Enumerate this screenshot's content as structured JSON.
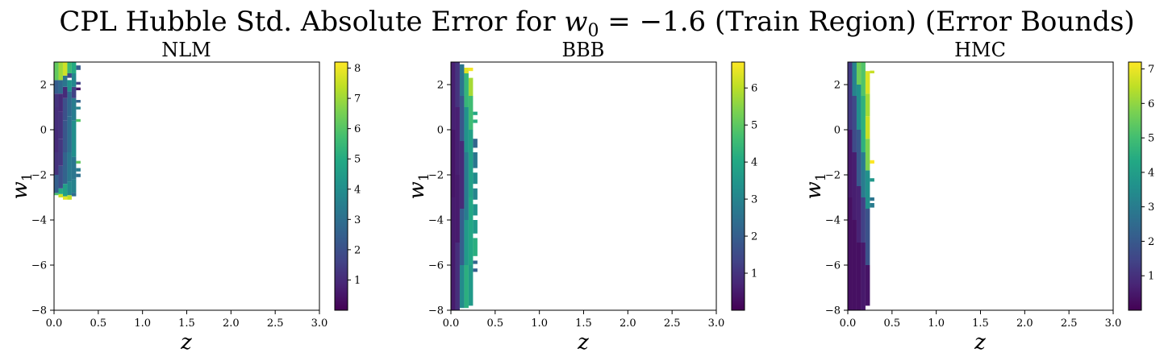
{
  "figure": {
    "title_prefix": "CPL Hubble Std. Absolute Error for ",
    "title_math_var": "w",
    "title_math_sub": "0",
    "title_math_rest": " = −1.6",
    "title_suffix": " (Train Region) (Error Bounds)"
  },
  "chart_data": [
    {
      "type": "heatmap",
      "title": "NLM",
      "xlabel": "z",
      "ylabel_var": "w",
      "ylabel_sub": "1",
      "xlim": [
        0.0,
        3.0
      ],
      "ylim": [
        -8,
        3
      ],
      "x_ticks": [
        "0.0",
        "0.5",
        "1.0",
        "1.5",
        "2.0",
        "2.5",
        "3.0"
      ],
      "y_ticks": [
        "−8",
        "−6",
        "−4",
        "−2",
        "0",
        "2"
      ],
      "y_tick_values": [
        -8,
        -6,
        -4,
        -2,
        0,
        2
      ],
      "colorbar_ticks": [
        "1",
        "2",
        "3",
        "4",
        "5",
        "6",
        "7",
        "8"
      ],
      "colorbar_tick_values": [
        1,
        2,
        3,
        4,
        5,
        6,
        7,
        8
      ],
      "vmin": 0.0,
      "vmax": 8.2,
      "columns": [
        {
          "x": [
            0.0,
            0.05
          ],
          "cells": [
            [
              -2.9,
              -2.8,
              5.8
            ],
            [
              -2.8,
              -2.0,
              2.5
            ],
            [
              -2.0,
              -1.0,
              1.2
            ],
            [
              -1.0,
              0.0,
              1.0
            ],
            [
              0.0,
              1.0,
              1.1
            ],
            [
              1.0,
              1.6,
              1.2
            ],
            [
              1.6,
              2.2,
              2.4
            ],
            [
              2.2,
              3.0,
              6.2
            ]
          ]
        },
        {
          "x": [
            0.05,
            0.1
          ],
          "cells": [
            [
              -3.0,
              -2.85,
              7.6
            ],
            [
              -2.85,
              -2.6,
              5.0
            ],
            [
              -2.6,
              -1.6,
              2.0
            ],
            [
              -1.6,
              -0.4,
              1.3
            ],
            [
              -0.4,
              0.8,
              1.2
            ],
            [
              0.8,
              1.6,
              1.0
            ],
            [
              1.6,
              2.2,
              2.8
            ],
            [
              2.2,
              3.0,
              7.0
            ]
          ]
        },
        {
          "x": [
            0.1,
            0.15
          ],
          "cells": [
            [
              -3.1,
              -2.95,
              7.9
            ],
            [
              -2.95,
              -2.4,
              4.6
            ],
            [
              -2.4,
              -1.0,
              2.6
            ],
            [
              -1.0,
              0.4,
              2.2
            ],
            [
              0.4,
              1.4,
              2.0
            ],
            [
              1.4,
              1.9,
              1.0
            ],
            [
              1.9,
              2.4,
              3.2
            ],
            [
              2.4,
              3.0,
              7.6
            ]
          ]
        },
        {
          "x": [
            0.15,
            0.2
          ],
          "cells": [
            [
              -3.1,
              -2.9,
              7.4
            ],
            [
              -2.9,
              -2.3,
              3.8
            ],
            [
              -2.3,
              -1.0,
              3.3
            ],
            [
              -1.0,
              0.6,
              3.0
            ],
            [
              0.6,
              1.7,
              2.8
            ],
            [
              1.7,
              2.2,
              4.2
            ],
            [
              2.3,
              2.5,
              1.8
            ],
            [
              2.5,
              3.0,
              5.5
            ]
          ]
        },
        {
          "x": [
            0.2,
            0.25
          ],
          "cells": [
            [
              -2.95,
              -2.8,
              2.9
            ],
            [
              -2.8,
              -2.2,
              3.6
            ],
            [
              -2.2,
              -1.2,
              3.2
            ],
            [
              -1.2,
              0.4,
              4.0
            ],
            [
              0.4,
              1.4,
              3.4
            ],
            [
              1.4,
              1.9,
              1.6
            ],
            [
              1.9,
              2.5,
              3.8
            ],
            [
              2.5,
              3.0,
              5.0
            ]
          ]
        },
        {
          "x": [
            0.25,
            0.3
          ],
          "cells": [
            [
              -2.1,
              -1.95,
              3.0
            ],
            [
              -1.85,
              -1.7,
              3.4
            ],
            [
              -1.5,
              -1.38,
              6.2
            ],
            [
              0.35,
              0.47,
              6.0
            ],
            [
              0.9,
              1.02,
              3.6
            ],
            [
              1.2,
              1.32,
              2.6
            ],
            [
              1.75,
              1.87,
              0.4
            ],
            [
              2.0,
              2.12,
              1.6
            ],
            [
              2.65,
              2.85,
              2.4
            ]
          ]
        }
      ]
    },
    {
      "type": "heatmap",
      "title": "BBB",
      "xlabel": "z",
      "ylabel_var": "w",
      "ylabel_sub": "1",
      "xlim": [
        0.0,
        3.0
      ],
      "ylim": [
        -8,
        3
      ],
      "x_ticks": [
        "0.0",
        "0.5",
        "1.0",
        "1.5",
        "2.0",
        "2.5",
        "3.0"
      ],
      "y_ticks": [
        "−8",
        "−6",
        "−4",
        "−2",
        "0",
        "2"
      ],
      "y_tick_values": [
        -8,
        -6,
        -4,
        -2,
        0,
        2
      ],
      "colorbar_ticks": [
        "1",
        "2",
        "3",
        "4",
        "5",
        "6"
      ],
      "colorbar_tick_values": [
        1,
        2,
        3,
        4,
        5,
        6
      ],
      "vmin": 0.0,
      "vmax": 6.7,
      "columns": [
        {
          "x": [
            0.0,
            0.05
          ],
          "cells": [
            [
              -8.0,
              -3.0,
              0.5
            ],
            [
              -3.0,
              0.0,
              0.4
            ],
            [
              0.0,
              3.0,
              0.6
            ]
          ]
        },
        {
          "x": [
            0.05,
            0.1
          ],
          "cells": [
            [
              -8.0,
              -5.0,
              0.9
            ],
            [
              -5.0,
              -2.0,
              0.5
            ],
            [
              -2.0,
              1.0,
              0.6
            ],
            [
              1.0,
              3.0,
              1.0
            ]
          ]
        },
        {
          "x": [
            0.1,
            0.15
          ],
          "cells": [
            [
              -7.9,
              -6.0,
              3.2
            ],
            [
              -6.0,
              -3.5,
              2.0
            ],
            [
              -3.5,
              -0.5,
              0.8
            ],
            [
              -0.5,
              1.5,
              1.8
            ],
            [
              1.5,
              2.9,
              2.6
            ]
          ]
        },
        {
          "x": [
            0.15,
            0.2
          ],
          "cells": [
            [
              -7.9,
              -6.0,
              4.2
            ],
            [
              -6.0,
              -4.0,
              3.6
            ],
            [
              -4.0,
              -1.0,
              2.8
            ],
            [
              -1.0,
              1.0,
              3.4
            ],
            [
              1.0,
              2.5,
              4.4
            ],
            [
              2.5,
              2.75,
              6.4
            ]
          ]
        },
        {
          "x": [
            0.2,
            0.25
          ],
          "cells": [
            [
              -7.8,
              -6.0,
              3.6
            ],
            [
              -6.0,
              -3.0,
              4.0
            ],
            [
              -3.0,
              0.0,
              3.8
            ],
            [
              0.0,
              1.5,
              4.6
            ],
            [
              1.5,
              2.3,
              5.8
            ],
            [
              2.6,
              2.75,
              6.6
            ]
          ]
        },
        {
          "x": [
            0.25,
            0.3
          ],
          "cells": [
            [
              -6.3,
              -6.15,
              2.0
            ],
            [
              -5.95,
              -5.8,
              2.2
            ],
            [
              -5.6,
              -4.8,
              4.2
            ],
            [
              -4.6,
              -4.0,
              3.6
            ],
            [
              -3.8,
              -3.3,
              3.4
            ],
            [
              -3.1,
              -2.6,
              3.0
            ],
            [
              -2.4,
              -1.9,
              3.2
            ],
            [
              -1.7,
              -1.0,
              2.6
            ],
            [
              -0.8,
              -0.4,
              2.2
            ],
            [
              0.3,
              0.45,
              4.2
            ],
            [
              0.65,
              0.8,
              4.0
            ]
          ]
        }
      ]
    },
    {
      "type": "heatmap",
      "title": "HMC",
      "xlabel": "z",
      "ylabel_var": "w",
      "ylabel_sub": "1",
      "xlim": [
        0.0,
        3.0
      ],
      "ylim": [
        -8,
        3
      ],
      "x_ticks": [
        "0.0",
        "0.5",
        "1.0",
        "1.5",
        "2.0",
        "2.5",
        "3.0"
      ],
      "y_ticks": [
        "−8",
        "−6",
        "−4",
        "−2",
        "0",
        "2"
      ],
      "y_tick_values": [
        -8,
        -6,
        -4,
        -2,
        0,
        2
      ],
      "colorbar_ticks": [
        "1",
        "2",
        "3",
        "4",
        "5",
        "6",
        "7"
      ],
      "colorbar_tick_values": [
        1,
        2,
        3,
        4,
        5,
        6,
        7
      ],
      "vmin": 0.0,
      "vmax": 7.2,
      "columns": [
        {
          "x": [
            0.0,
            0.05
          ],
          "cells": [
            [
              -8.0,
              -3.0,
              0.3
            ],
            [
              -3.0,
              0.0,
              0.5
            ],
            [
              0.0,
              3.0,
              1.2
            ]
          ]
        },
        {
          "x": [
            0.05,
            0.1
          ],
          "cells": [
            [
              -8.0,
              -4.0,
              0.3
            ],
            [
              -4.0,
              -1.0,
              0.6
            ],
            [
              -1.0,
              1.5,
              1.6
            ],
            [
              1.5,
              3.0,
              3.2
            ]
          ]
        },
        {
          "x": [
            0.1,
            0.15
          ],
          "cells": [
            [
              -8.0,
              -5.0,
              0.3
            ],
            [
              -5.0,
              -2.5,
              0.7
            ],
            [
              -2.5,
              0.0,
              2.0
            ],
            [
              0.0,
              2.0,
              3.6
            ],
            [
              2.0,
              3.0,
              5.6
            ]
          ]
        },
        {
          "x": [
            0.15,
            0.2
          ],
          "cells": [
            [
              -8.0,
              -5.0,
              0.5
            ],
            [
              -5.0,
              -3.0,
              1.4
            ],
            [
              -3.0,
              -1.0,
              3.0
            ],
            [
              -1.0,
              1.5,
              4.6
            ],
            [
              1.5,
              3.0,
              5.2
            ]
          ]
        },
        {
          "x": [
            0.2,
            0.25
          ],
          "cells": [
            [
              -7.8,
              -6.0,
              0.4
            ],
            [
              -6.0,
              -3.5,
              1.8
            ],
            [
              -3.5,
              -1.8,
              3.6
            ],
            [
              -1.8,
              -0.4,
              5.8
            ],
            [
              -0.4,
              0.6,
              6.6
            ],
            [
              0.6,
              1.6,
              6.2
            ],
            [
              1.6,
              2.6,
              6.8
            ]
          ]
        },
        {
          "x": [
            0.25,
            0.3
          ],
          "cells": [
            [
              -3.45,
              -3.25,
              3.0
            ],
            [
              -3.15,
              -3.0,
              2.8
            ],
            [
              -2.3,
              -2.15,
              3.8
            ],
            [
              -1.5,
              -1.35,
              7.2
            ],
            [
              2.5,
              2.62,
              6.6
            ]
          ]
        }
      ]
    }
  ]
}
